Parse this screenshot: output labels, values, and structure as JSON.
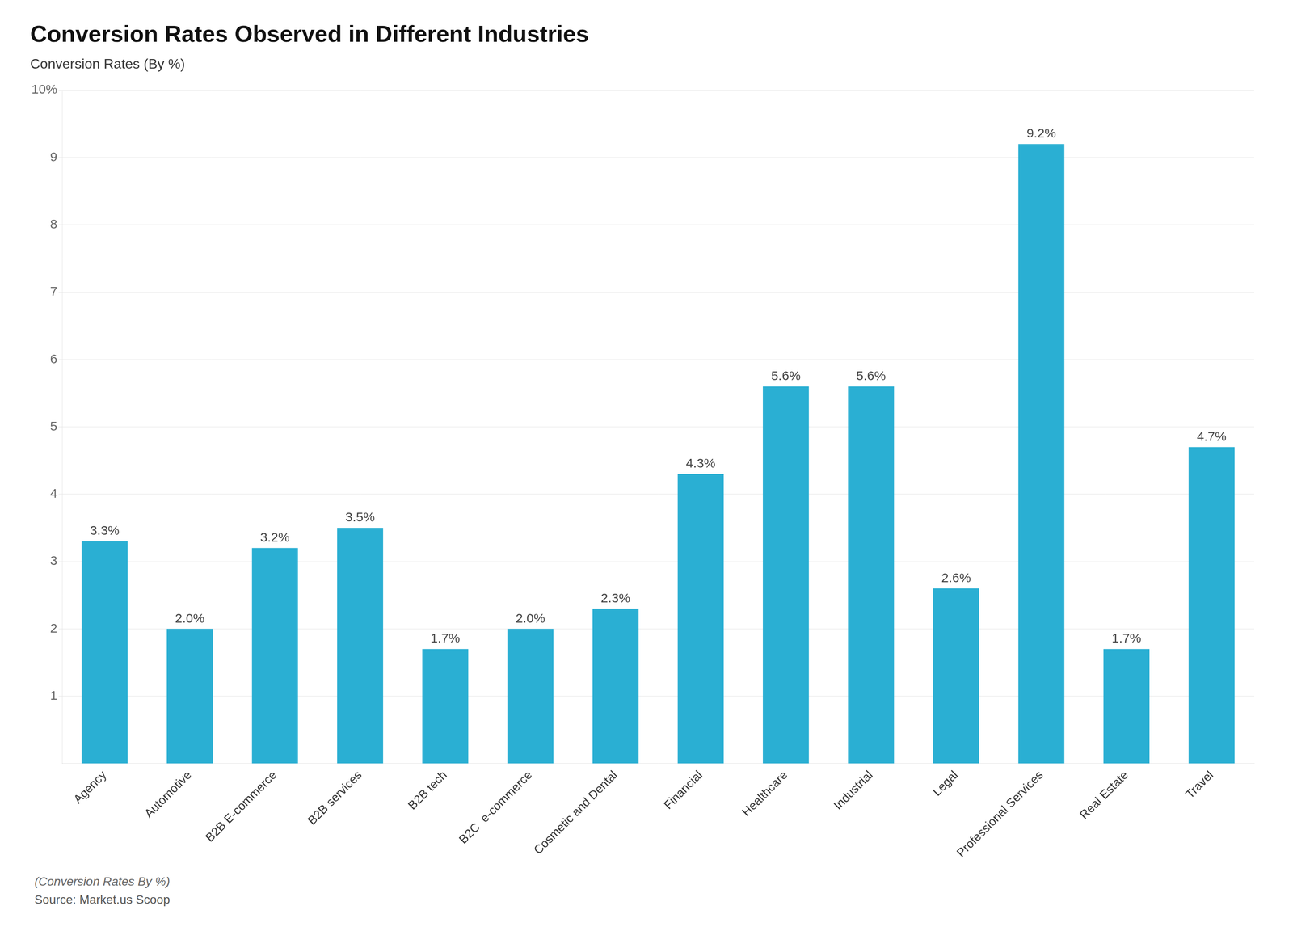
{
  "chart_data": {
    "type": "bar",
    "title": "Conversion Rates Observed in Different Industries",
    "subtitle": "Conversion Rates (By %)",
    "categories": [
      "Agency",
      "Automotive",
      "B2B E-commerce",
      "B2B services",
      "B2B tech",
      "B2C  e-commerce",
      "Cosmetic and Dental",
      "Financial",
      "Healthcare",
      "Industrial",
      "Legal",
      "Professional Services",
      "Real Estate",
      "Travel"
    ],
    "values": [
      3.3,
      2.0,
      3.2,
      3.5,
      1.7,
      2.0,
      2.3,
      4.3,
      5.6,
      5.6,
      2.6,
      9.2,
      1.7,
      4.7
    ],
    "value_labels": [
      "3.3%",
      "2.0%",
      "3.2%",
      "3.5%",
      "1.7%",
      "2.0%",
      "2.3%",
      "4.3%",
      "5.6%",
      "5.6%",
      "2.6%",
      "9.2%",
      "1.7%",
      "4.7%"
    ],
    "data_labels": true,
    "color": "#2aafd3",
    "ylim": [
      0,
      10
    ],
    "yticks": [
      1,
      2,
      3,
      4,
      5,
      6,
      7,
      8,
      9,
      {
        "value": 10,
        "label": "10%"
      }
    ],
    "grid": true,
    "annotations": [
      "(Conversion Rates By %)",
      "Source: Market.us Scoop"
    ]
  }
}
